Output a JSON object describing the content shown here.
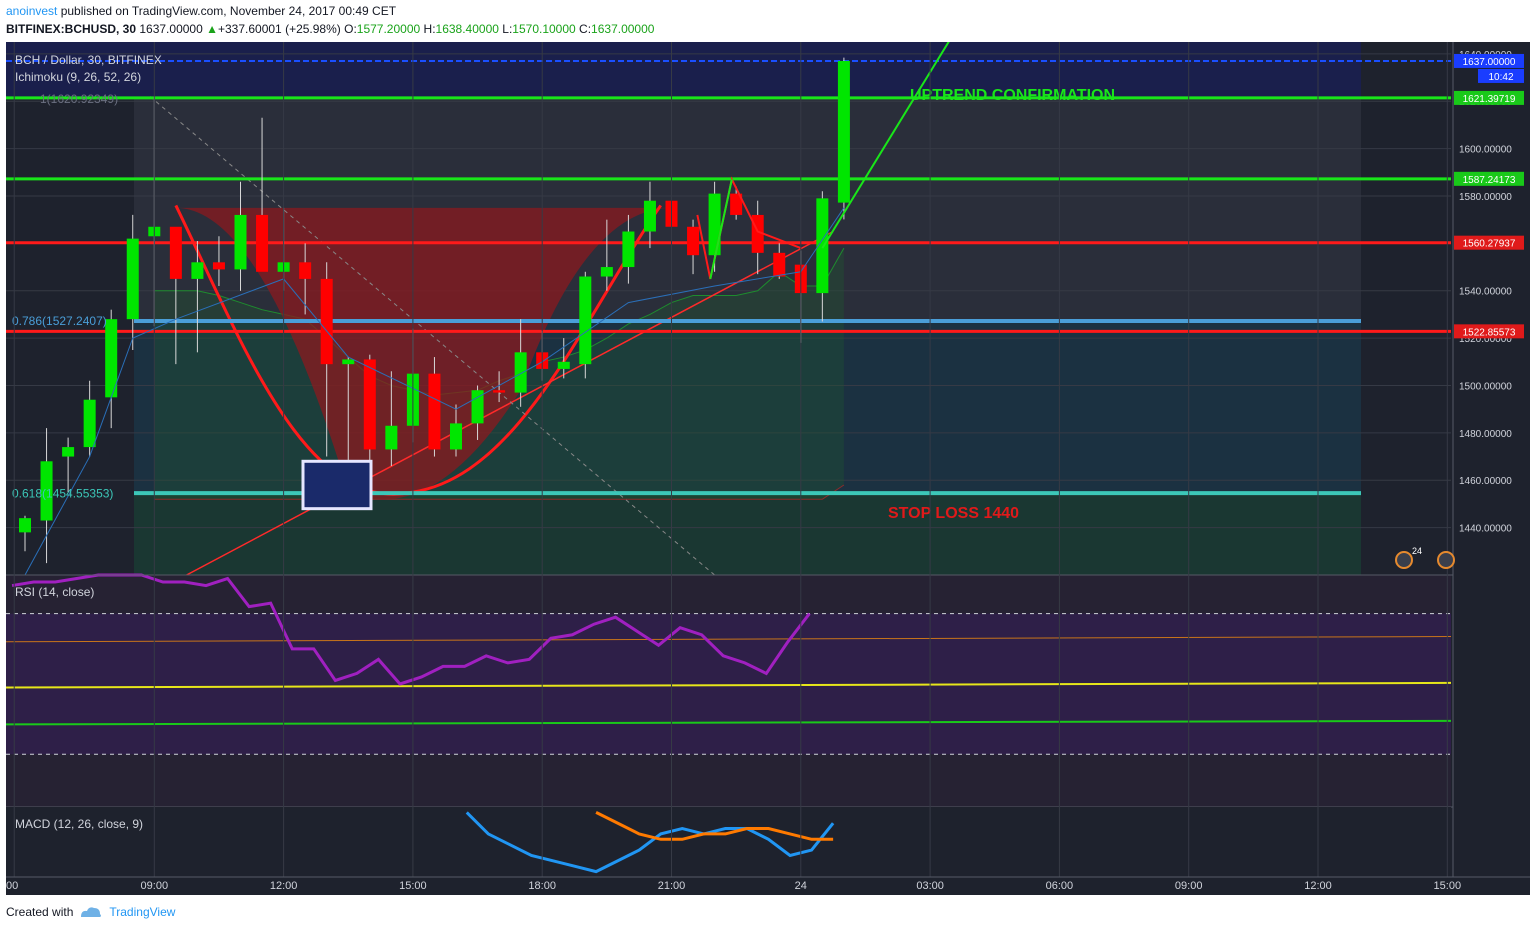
{
  "header": {
    "author": "anoinvest",
    "published_text": " published on TradingView.com, November 24, 2017 00:49 CET",
    "symbol": "BITFINEX:BCHUSD, 30",
    "last": "1637.00000",
    "change": "+337.60001 (+25.98%)",
    "open_label": "O:",
    "open": "1577.20000",
    "high_label": "H:",
    "high": "1638.40000",
    "low_label": "L:",
    "low": "1570.10000",
    "close_label": "C:",
    "close": "1637.00000"
  },
  "colors": {
    "bg": "#1e222d",
    "upper_band": "#1a1f52",
    "up": "#00e600",
    "down": "#ff0000",
    "red_line": "#ff1a1a",
    "green_line": "#19e619",
    "blue_line": "#1a4fff",
    "fib_blue": "#4a9ed8",
    "fib_teal": "#3cc7b8",
    "rsi": "#a020c0",
    "macd": "#2196f3",
    "signal": "#ff7a00"
  },
  "chart_data": [
    {
      "type": "candlestick",
      "title": "BCH / Dollar, 30, BITFINEX",
      "indicator_label": "Ichimoku (9, 26, 52, 26)",
      "ylim": [
        1420,
        1645
      ],
      "y_ticks": [
        "1440.00000",
        "1460.00000",
        "1480.00000",
        "1500.00000",
        "1520.00000",
        "1540.00000",
        "1560.00000",
        "1580.00000",
        "1600.00000",
        "1620.00000",
        "1640.00000"
      ],
      "x_ticks": [
        "00",
        "09:00",
        "12:00",
        "15:00",
        "18:00",
        "21:00",
        "24",
        "03:00",
        "06:00",
        "09:00",
        "12:00",
        "15:00"
      ],
      "candles": [
        {
          "o": 1438,
          "h": 1445,
          "l": 1430,
          "c": 1444
        },
        {
          "o": 1443,
          "h": 1482,
          "l": 1425,
          "c": 1468
        },
        {
          "o": 1470,
          "h": 1478,
          "l": 1455,
          "c": 1474
        },
        {
          "o": 1474,
          "h": 1502,
          "l": 1470,
          "c": 1494
        },
        {
          "o": 1495,
          "h": 1532,
          "l": 1482,
          "c": 1528
        },
        {
          "o": 1528,
          "h": 1572,
          "l": 1515,
          "c": 1562
        },
        {
          "o": 1563,
          "h": 1622,
          "l": 1525,
          "c": 1567
        },
        {
          "o": 1567,
          "h": 1566,
          "l": 1509,
          "c": 1545
        },
        {
          "o": 1545,
          "h": 1561,
          "l": 1514,
          "c": 1552
        },
        {
          "o": 1552,
          "h": 1563,
          "l": 1542,
          "c": 1549
        },
        {
          "o": 1549,
          "h": 1586,
          "l": 1540,
          "c": 1572
        },
        {
          "o": 1572,
          "h": 1613,
          "l": 1550,
          "c": 1548
        },
        {
          "o": 1548,
          "h": 1575,
          "l": 1540,
          "c": 1552
        },
        {
          "o": 1552,
          "h": 1560,
          "l": 1530,
          "c": 1545
        },
        {
          "o": 1545,
          "h": 1552,
          "l": 1470,
          "c": 1509
        },
        {
          "o": 1509,
          "h": 1512,
          "l": 1465,
          "c": 1511
        },
        {
          "o": 1511,
          "h": 1513,
          "l": 1466,
          "c": 1473
        },
        {
          "o": 1473,
          "h": 1506,
          "l": 1466,
          "c": 1483
        },
        {
          "o": 1483,
          "h": 1524,
          "l": 1476,
          "c": 1505
        },
        {
          "o": 1505,
          "h": 1512,
          "l": 1470,
          "c": 1473
        },
        {
          "o": 1473,
          "h": 1492,
          "l": 1470,
          "c": 1484
        },
        {
          "o": 1484,
          "h": 1500,
          "l": 1477,
          "c": 1498
        },
        {
          "o": 1498,
          "h": 1506,
          "l": 1493,
          "c": 1497
        },
        {
          "o": 1497,
          "h": 1528,
          "l": 1491,
          "c": 1514
        },
        {
          "o": 1514,
          "h": 1523,
          "l": 1502,
          "c": 1507
        },
        {
          "o": 1507,
          "h": 1520,
          "l": 1503,
          "c": 1510
        },
        {
          "o": 1509,
          "h": 1548,
          "l": 1503,
          "c": 1546
        },
        {
          "o": 1546,
          "h": 1570,
          "l": 1540,
          "c": 1550
        },
        {
          "o": 1550,
          "h": 1572,
          "l": 1543,
          "c": 1565
        },
        {
          "o": 1565,
          "h": 1586,
          "l": 1558,
          "c": 1578
        },
        {
          "o": 1578,
          "h": 1581,
          "l": 1553,
          "c": 1567
        },
        {
          "o": 1567,
          "h": 1570,
          "l": 1547,
          "c": 1555
        },
        {
          "o": 1555,
          "h": 1586,
          "l": 1548,
          "c": 1581
        },
        {
          "o": 1581,
          "h": 1584,
          "l": 1570,
          "c": 1572
        },
        {
          "o": 1572,
          "h": 1578,
          "l": 1547,
          "c": 1556
        },
        {
          "o": 1556,
          "h": 1560,
          "l": 1545,
          "c": 1546
        },
        {
          "o": 1551,
          "h": 1557,
          "l": 1518,
          "c": 1539
        },
        {
          "o": 1539,
          "h": 1582,
          "l": 1527,
          "c": 1579
        },
        {
          "o": 1577.2,
          "h": 1638.4,
          "l": 1570.1,
          "c": 1637
        }
      ],
      "levels": [
        {
          "value": 1637.0,
          "label": "1637.00000",
          "style": "blue-dashed"
        },
        {
          "value": 1621.39719,
          "label": "1621.39719",
          "style": "green"
        },
        {
          "value": 1587.24173,
          "label": "1587.24173",
          "style": "green"
        },
        {
          "value": 1560.27937,
          "label": "1560.27937",
          "style": "red"
        },
        {
          "value": 1527.2,
          "label": "",
          "style": "fib-blue"
        },
        {
          "value": 1522.85573,
          "label": "1522.85573",
          "style": "red"
        },
        {
          "value": 1454.55353,
          "label": "",
          "style": "fib-teal"
        }
      ],
      "price_tag_time": "10:42",
      "fib_labels": [
        "0.786(1527.2407)",
        "0.618(1454.55353)",
        "1(1620.92349)"
      ],
      "annotations": [
        "UPTREND CONFIRMATION",
        "STOP LOSS 1440"
      ],
      "cloud_a": [
        1540,
        1540,
        1540,
        1538,
        1535,
        1532,
        1530,
        1528,
        1520,
        1512,
        1504,
        1500,
        1498,
        1496,
        1497,
        1498,
        1502,
        1505,
        1510,
        1512,
        1515,
        1520,
        1526,
        1530,
        1535,
        1538,
        1538,
        1538,
        1540,
        1548,
        1542,
        1542,
        1558
      ],
      "cloud_b": [
        1452,
        1452,
        1452,
        1452,
        1452,
        1452,
        1452,
        1452,
        1452,
        1452,
        1452,
        1452,
        1452,
        1452,
        1452,
        1452,
        1452,
        1452,
        1452,
        1452,
        1452,
        1452,
        1452,
        1452,
        1452,
        1452,
        1452,
        1452,
        1452,
        1452,
        1452,
        1452,
        1458
      ]
    },
    {
      "type": "line",
      "title": "RSI (14, close)",
      "ylim": [
        15,
        81
      ],
      "y_ticks": [
        "20.0000",
        "30.0000",
        "40.0000",
        "50.0000",
        "60.0000",
        "70.0000",
        "80.0000"
      ],
      "bands": [
        30,
        70
      ],
      "values": [
        78,
        79,
        79,
        80,
        82,
        84,
        83,
        79,
        79,
        78,
        80,
        72,
        73,
        60,
        60,
        51,
        53,
        57,
        50,
        52,
        55,
        55,
        58,
        56,
        57,
        63,
        64,
        67,
        69,
        65,
        61,
        66,
        64,
        58,
        56,
        53,
        62,
        70
      ]
    },
    {
      "type": "line",
      "title": "MACD (12, 26, close, 9)",
      "ylim": [
        18,
        31
      ],
      "y_ticks": [
        "20.0000",
        "30.0000"
      ],
      "series": [
        {
          "name": "MACD",
          "values": [
            null,
            null,
            null,
            null,
            null,
            null,
            null,
            null,
            null,
            null,
            null,
            null,
            null,
            null,
            null,
            30,
            26,
            24,
            22,
            21,
            20,
            19,
            21,
            23,
            26,
            27,
            26,
            27,
            27,
            25,
            22,
            23,
            28
          ]
        },
        {
          "name": "Signal",
          "values": [
            null,
            null,
            null,
            null,
            null,
            null,
            null,
            null,
            null,
            null,
            null,
            null,
            null,
            null,
            null,
            null,
            null,
            null,
            null,
            null,
            null,
            30,
            28,
            26,
            25,
            25,
            26,
            26,
            27,
            27,
            26,
            25,
            25
          ]
        }
      ]
    }
  ],
  "footer": {
    "created": "Created with",
    "brand": "TradingView"
  }
}
